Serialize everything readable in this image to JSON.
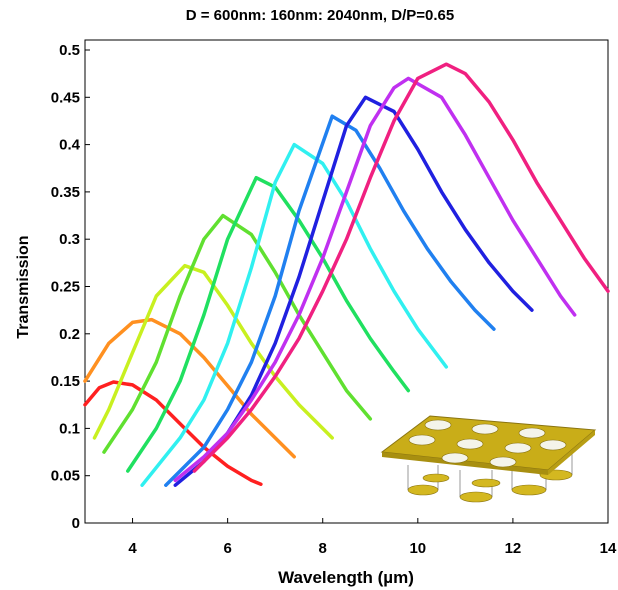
{
  "chart_data": {
    "type": "line",
    "title": "D = 600nm: 160nm: 2040nm,   D/P=0.65",
    "x_label": "Wavelength (µm)",
    "y_label": "Transmission",
    "xlim": [
      3,
      14
    ],
    "ylim": [
      0,
      0.5
    ],
    "xticks": [
      4,
      6,
      8,
      10,
      12,
      14
    ],
    "yticks": [
      0,
      0.05,
      0.1,
      0.15,
      0.2,
      0.25,
      0.3,
      0.35,
      0.4,
      0.45,
      0.5
    ],
    "series": [
      {
        "color": "#ff2020",
        "x": [
          3.0,
          3.3,
          3.6,
          4.0,
          4.5,
          5.0,
          5.5,
          6.0,
          6.5,
          6.7
        ],
        "values": [
          0.125,
          0.143,
          0.149,
          0.146,
          0.13,
          0.105,
          0.08,
          0.06,
          0.045,
          0.041
        ]
      },
      {
        "color": "#ff9020",
        "x": [
          3.0,
          3.5,
          4.0,
          4.4,
          5.0,
          5.5,
          6.0,
          6.5,
          7.0,
          7.4
        ],
        "values": [
          0.15,
          0.19,
          0.212,
          0.215,
          0.2,
          0.175,
          0.145,
          0.115,
          0.09,
          0.07
        ]
      },
      {
        "color": "#c8f020",
        "x": [
          3.2,
          3.5,
          4.0,
          4.5,
          5.1,
          5.5,
          6.0,
          6.5,
          7.0,
          7.5,
          8.2
        ],
        "values": [
          0.09,
          0.12,
          0.18,
          0.24,
          0.272,
          0.265,
          0.23,
          0.19,
          0.155,
          0.125,
          0.09
        ]
      },
      {
        "color": "#60e030",
        "x": [
          3.4,
          4.0,
          4.5,
          5.0,
          5.5,
          5.9,
          6.5,
          7.0,
          7.5,
          8.0,
          8.5,
          9.0
        ],
        "values": [
          0.075,
          0.12,
          0.17,
          0.24,
          0.3,
          0.325,
          0.305,
          0.265,
          0.22,
          0.18,
          0.14,
          0.11
        ]
      },
      {
        "color": "#20e060",
        "x": [
          3.9,
          4.5,
          5.0,
          5.5,
          6.0,
          6.6,
          7.0,
          7.5,
          8.0,
          8.5,
          9.0,
          9.5,
          9.8
        ],
        "values": [
          0.055,
          0.1,
          0.15,
          0.22,
          0.3,
          0.365,
          0.355,
          0.32,
          0.28,
          0.235,
          0.195,
          0.16,
          0.14
        ]
      },
      {
        "color": "#30f0f0",
        "x": [
          4.2,
          5.0,
          5.5,
          6.0,
          6.5,
          7.0,
          7.4,
          8.0,
          8.5,
          9.0,
          9.5,
          10.0,
          10.6
        ],
        "values": [
          0.04,
          0.09,
          0.13,
          0.19,
          0.27,
          0.36,
          0.4,
          0.38,
          0.34,
          0.29,
          0.245,
          0.205,
          0.165
        ]
      },
      {
        "color": "#2080f0",
        "x": [
          4.7,
          5.5,
          6.0,
          6.5,
          7.0,
          7.5,
          8.2,
          8.7,
          9.2,
          9.7,
          10.2,
          10.7,
          11.2,
          11.6
        ],
        "values": [
          0.04,
          0.08,
          0.12,
          0.17,
          0.24,
          0.33,
          0.43,
          0.415,
          0.375,
          0.33,
          0.29,
          0.255,
          0.225,
          0.205
        ]
      },
      {
        "color": "#2020e0",
        "x": [
          4.9,
          5.5,
          6.0,
          6.5,
          7.0,
          7.5,
          8.0,
          8.5,
          8.9,
          9.5,
          10.0,
          10.5,
          11.0,
          11.5,
          12.0,
          12.4
        ],
        "values": [
          0.04,
          0.065,
          0.095,
          0.135,
          0.19,
          0.26,
          0.34,
          0.42,
          0.45,
          0.435,
          0.395,
          0.35,
          0.31,
          0.275,
          0.245,
          0.225
        ]
      },
      {
        "color": "#c030f0",
        "x": [
          4.9,
          5.5,
          6.0,
          6.5,
          7.0,
          7.5,
          8.0,
          8.5,
          9.0,
          9.5,
          9.8,
          10.5,
          11.0,
          11.5,
          12.0,
          12.5,
          13.0,
          13.3
        ],
        "values": [
          0.045,
          0.07,
          0.095,
          0.13,
          0.17,
          0.22,
          0.28,
          0.35,
          0.42,
          0.46,
          0.47,
          0.45,
          0.41,
          0.365,
          0.32,
          0.28,
          0.24,
          0.22
        ]
      },
      {
        "color": "#f02080",
        "x": [
          5.3,
          6.0,
          6.5,
          7.0,
          7.5,
          8.0,
          8.5,
          9.0,
          9.5,
          10.0,
          10.6,
          11.0,
          11.5,
          12.0,
          12.5,
          13.0,
          13.5,
          14.0
        ],
        "values": [
          0.055,
          0.09,
          0.12,
          0.155,
          0.195,
          0.245,
          0.3,
          0.365,
          0.425,
          0.47,
          0.485,
          0.475,
          0.445,
          0.405,
          0.36,
          0.32,
          0.28,
          0.245
        ]
      }
    ]
  }
}
